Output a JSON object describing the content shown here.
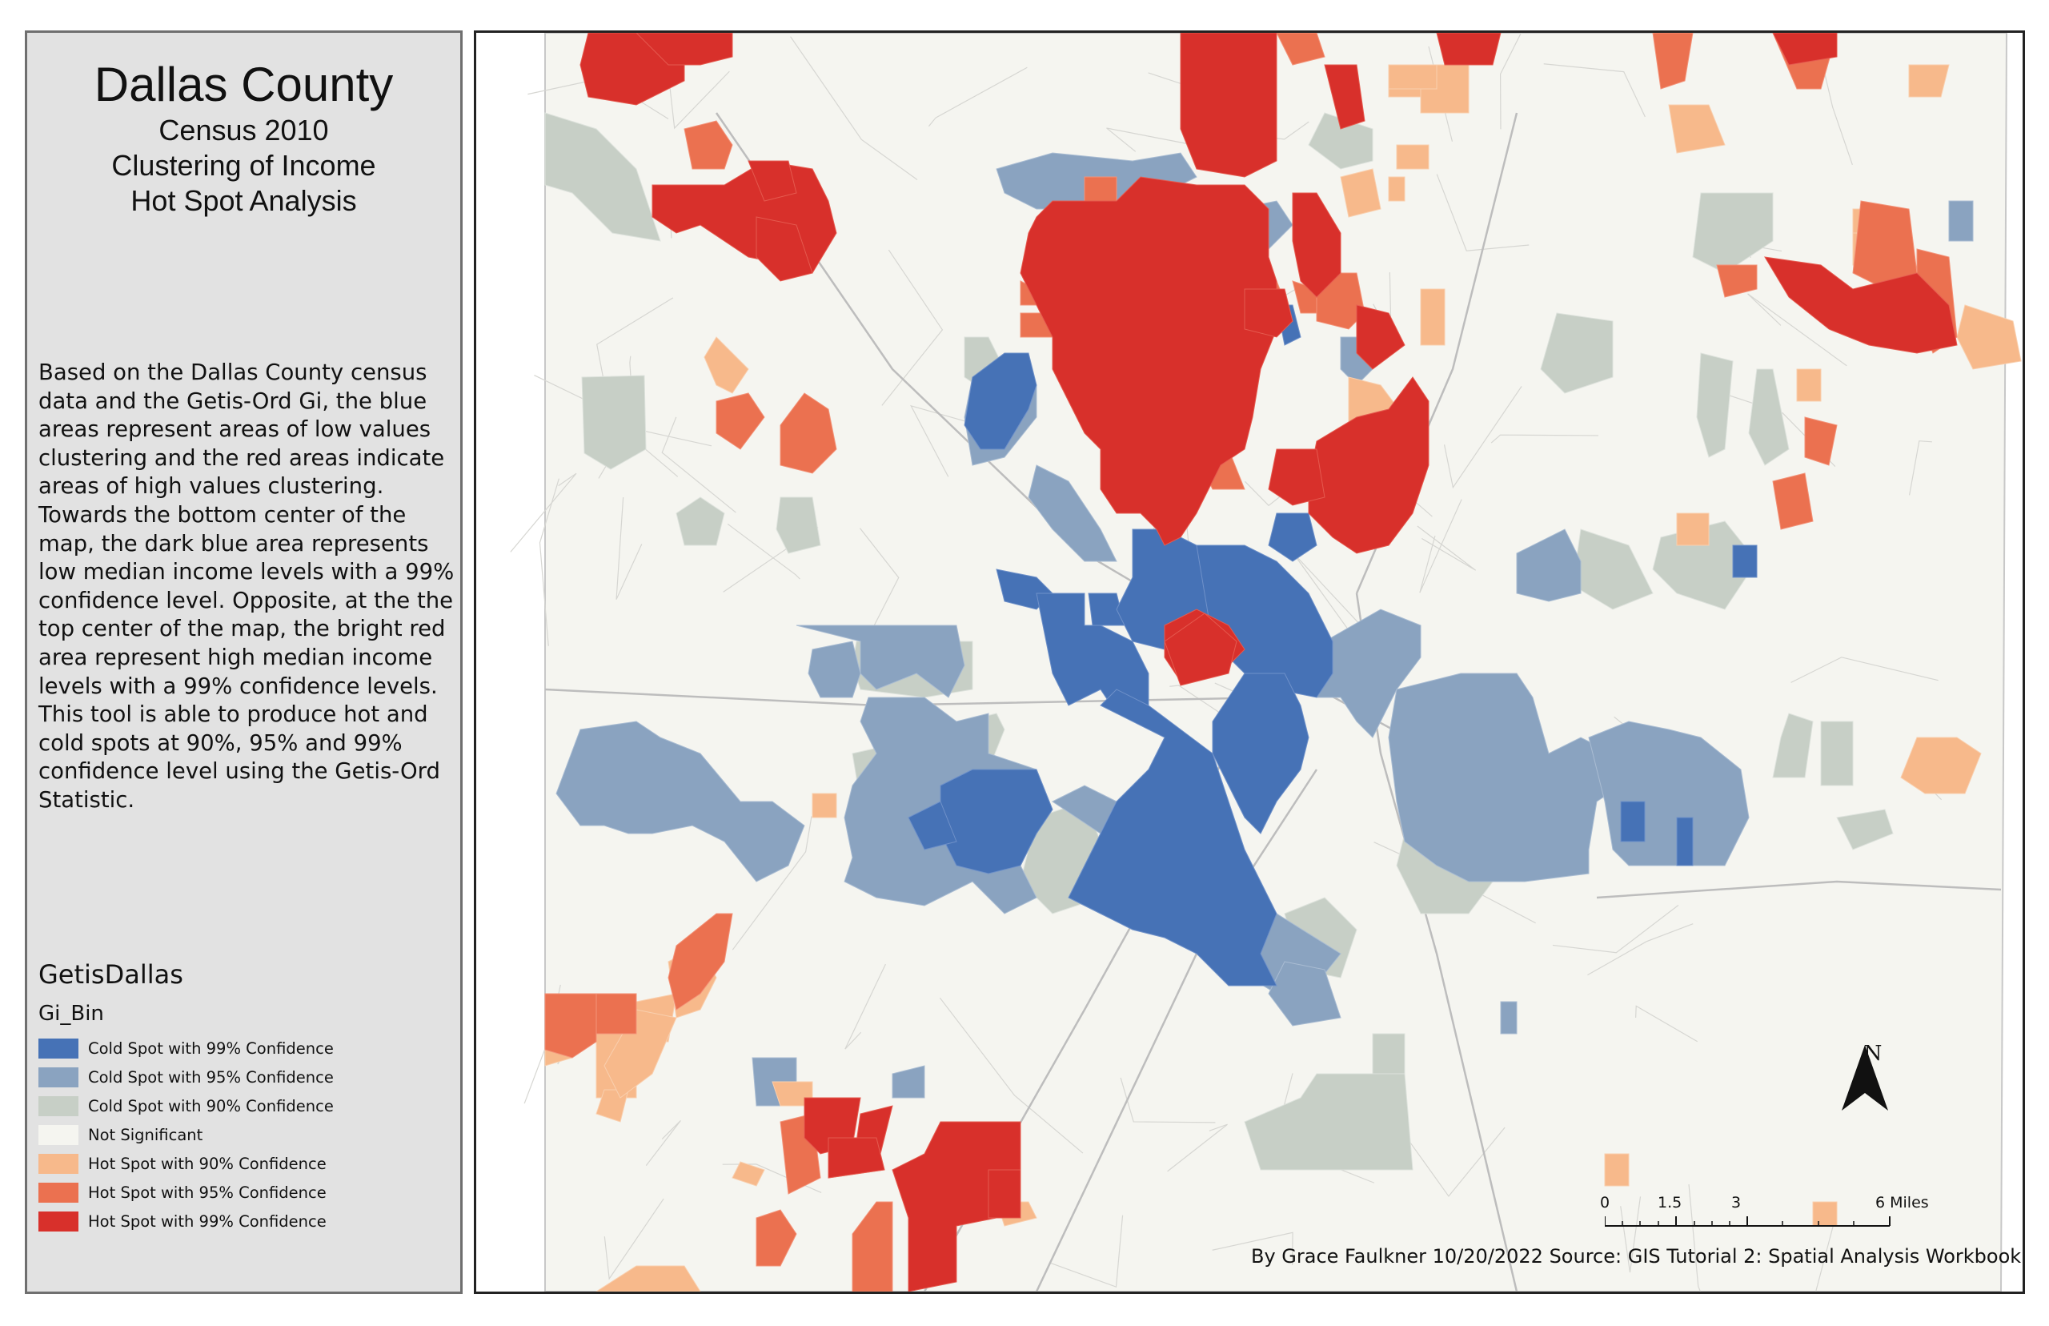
{
  "title": {
    "main": "Dallas County",
    "line2": "Census 2010",
    "line3": "Clustering of Income",
    "line4": "Hot Spot Analysis"
  },
  "description": "Based on the Dallas County census data and the Getis-Ord Gi, the blue areas represent areas of low values clustering and the red areas indicate areas of high values clustering. Towards the bottom center of the map, the dark blue area represents low median income levels with a 99% confidence  level. Opposite, at the the top center of the map, the bright red area represent high median income levels with a 99% confidence levels. This tool is able to produce hot and cold spots at 90%, 95% and 99% confidence level using the Getis-Ord Statistic.",
  "legend": {
    "layer": "GetisDallas",
    "field": "Gi_Bin",
    "items": [
      {
        "label": "Cold Spot with 99% Confidence",
        "color": "#4672b6"
      },
      {
        "label": "Cold Spot with 95% Confidence",
        "color": "#8aa3c0"
      },
      {
        "label": "Cold Spot with 90% Confidence",
        "color": "#c7cfc6"
      },
      {
        "label": "Not Significant",
        "color": "#f5f5f0"
      },
      {
        "label": "Hot Spot with 90% Confidence",
        "color": "#f7b98b"
      },
      {
        "label": "Hot Spot with 95% Confidence",
        "color": "#eb7150"
      },
      {
        "label": "Hot Spot with 99% Confidence",
        "color": "#d8302b"
      }
    ]
  },
  "north_arrow": "N",
  "scale": {
    "ticks": [
      "0",
      "1.5",
      "3",
      "6 Miles"
    ]
  },
  "credit": "By Grace Faulkner 10/20/2022 Source: GIS Tutorial 2: Spatial Analysis Workbook"
}
